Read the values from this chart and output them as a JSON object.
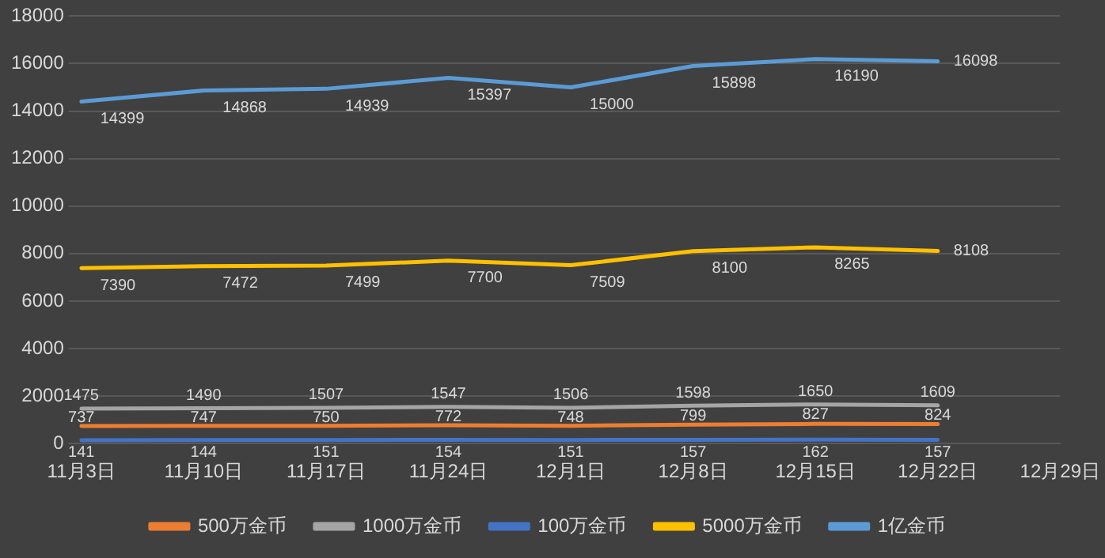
{
  "chart_data": {
    "type": "line",
    "categories": [
      "11月3日",
      "11月10日",
      "11月17日",
      "11月24日",
      "12月1日",
      "12月8日",
      "12月15日",
      "12月22日",
      "12月29日"
    ],
    "series": [
      {
        "name": "500万金币",
        "color": "#ed7d31",
        "values": [
          737,
          747,
          750,
          772,
          748,
          799,
          827,
          824,
          null
        ]
      },
      {
        "name": "1000万金币",
        "color": "#a5a5a5",
        "values": [
          1475,
          1490,
          1507,
          1547,
          1506,
          1598,
          1650,
          1609,
          null
        ]
      },
      {
        "name": "100万金币",
        "color": "#4472c4",
        "values": [
          141,
          144,
          151,
          154,
          151,
          157,
          162,
          157,
          null
        ]
      },
      {
        "name": "5000万金币",
        "color": "#ffc000",
        "values": [
          7390,
          7472,
          7499,
          7700,
          7509,
          8100,
          8265,
          8108,
          null
        ]
      },
      {
        "name": "1亿金币",
        "color": "#5b9bd5",
        "values": [
          14399,
          14868,
          14939,
          15397,
          15000,
          15898,
          16190,
          16098,
          null
        ]
      }
    ],
    "ylim": [
      0,
      18000
    ],
    "yticks": [
      0,
      2000,
      4000,
      6000,
      8000,
      10000,
      12000,
      14000,
      16000,
      18000
    ],
    "grid": "y",
    "legend": "bottom",
    "marker": "none",
    "line_style": "solid",
    "data_labels": true
  }
}
